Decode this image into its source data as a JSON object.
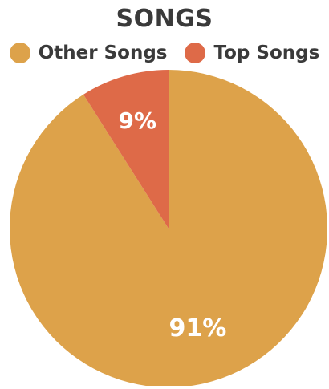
{
  "chart_data": {
    "type": "pie",
    "title": "SONGS",
    "categories": [
      "Other Songs",
      "Top Songs"
    ],
    "values": [
      91,
      9
    ],
    "labels": [
      "91%",
      "9%"
    ],
    "colors": [
      "#DDA24A",
      "#DE6A48"
    ],
    "legend_position": "top"
  }
}
